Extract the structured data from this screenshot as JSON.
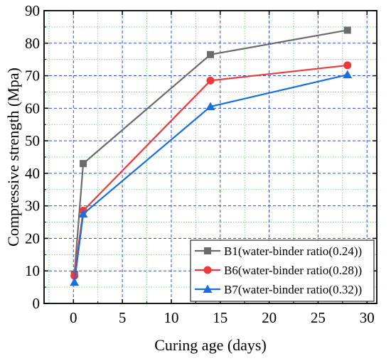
{
  "chart_data": {
    "type": "line",
    "title": "",
    "xlabel": "Curing age (days)",
    "ylabel": "Compressive strength (Mpa)",
    "xlim": [
      -3,
      31
    ],
    "ylim": [
      0,
      90
    ],
    "x_ticks": [
      0,
      5,
      10,
      15,
      20,
      25,
      30
    ],
    "y_ticks": [
      0,
      10,
      20,
      30,
      40,
      50,
      60,
      70,
      80,
      90
    ],
    "grid": true,
    "legend_position": "bottom-right",
    "series": [
      {
        "name": "B1(water-binder ratio(0.24))",
        "color": "#6b6b6b",
        "marker": "square",
        "x": [
          0.1,
          1,
          14,
          28
        ],
        "y": [
          9,
          43,
          76.5,
          84
        ]
      },
      {
        "name": "B6(water-binder ratio(0.28))",
        "color": "#f03838",
        "marker": "circle",
        "x": [
          0.1,
          1,
          14,
          28
        ],
        "y": [
          8.5,
          28.5,
          68.5,
          73.2
        ]
      },
      {
        "name": "B7(water-binder ratio(0.32))",
        "color": "#1a6fe0",
        "marker": "triangle",
        "x": [
          0.1,
          1,
          14,
          28
        ],
        "y": [
          6.5,
          27.5,
          60.5,
          70.3
        ]
      }
    ]
  }
}
